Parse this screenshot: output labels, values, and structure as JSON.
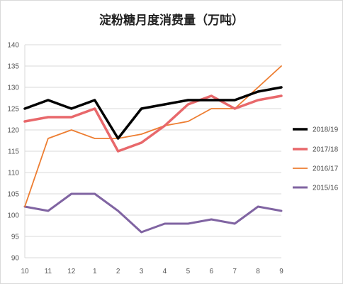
{
  "chart_data": {
    "type": "line",
    "title": "淀粉糖月度消费量（万吨）",
    "categories": [
      "10",
      "11",
      "12",
      "1",
      "2",
      "3",
      "4",
      "5",
      "6",
      "7",
      "8",
      "9"
    ],
    "ylim": [
      90,
      140
    ],
    "yticks": [
      90,
      95,
      100,
      105,
      110,
      115,
      120,
      125,
      130,
      135,
      140
    ],
    "grid": true,
    "legend_position": "right",
    "series": [
      {
        "name": "2018/19",
        "color": "#000000",
        "width": 3.5,
        "values": [
          125,
          127,
          125,
          127,
          118,
          125,
          126,
          127,
          127,
          127,
          129,
          130
        ]
      },
      {
        "name": "2017/18",
        "color": "#e8686b",
        "width": 3.5,
        "values": [
          122,
          123,
          123,
          125,
          115,
          117,
          121,
          126,
          128,
          125,
          127,
          128
        ]
      },
      {
        "name": "2016/17",
        "color": "#ed7d31",
        "width": 1.8,
        "values": [
          102,
          118,
          120,
          118,
          118,
          119,
          121,
          122,
          125,
          125,
          130,
          135
        ]
      },
      {
        "name": "2015/16",
        "color": "#8064a2",
        "width": 3.0,
        "values": [
          102,
          101,
          105,
          105,
          101,
          96,
          98,
          98,
          99,
          98,
          102,
          101
        ]
      }
    ]
  }
}
